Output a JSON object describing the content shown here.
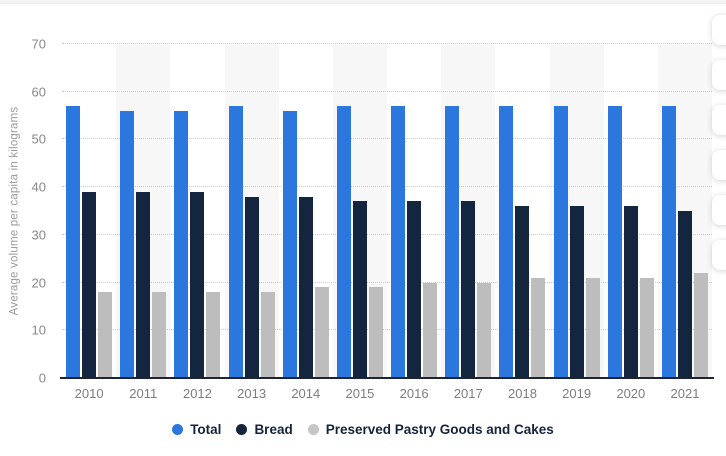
{
  "top_strip": {
    "color": "#f4f4f4"
  },
  "chart_data": {
    "type": "bar",
    "title": "",
    "xlabel": "",
    "ylabel": "Average volume per capita in kilograms",
    "categories": [
      "2010",
      "2011",
      "2012",
      "2013",
      "2014",
      "2015",
      "2016",
      "2017",
      "2018",
      "2019",
      "2020",
      "2021"
    ],
    "series": [
      {
        "name": "Total",
        "color": "#2b77dd",
        "values": [
          57,
          56,
          56,
          57,
          56,
          57,
          57,
          57,
          57,
          57,
          57,
          57
        ]
      },
      {
        "name": "Bread",
        "color": "#14263f",
        "values": [
          39,
          39,
          39,
          38,
          38,
          37,
          37,
          37,
          36,
          36,
          36,
          35
        ]
      },
      {
        "name": "Preserved Pastry Goods and Cakes",
        "color": "#bdbdbd",
        "values": [
          18,
          18,
          18,
          18,
          19,
          19,
          20,
          20,
          21,
          21,
          21,
          22
        ]
      }
    ],
    "ylim": [
      0,
      70
    ],
    "yticks": [
      0,
      10,
      20,
      30,
      40,
      50,
      60,
      70
    ],
    "grid": "horizontal-dotted",
    "column_highlight_indices": [
      1,
      3,
      5,
      7,
      9,
      11
    ],
    "legend_position": "bottom",
    "legend_marker_colors": [
      "#2b77dd",
      "#16253c",
      "#c6c6c6"
    ]
  },
  "colors": {
    "axis_text": "#898989",
    "x_axis_text": "#7d7d7d",
    "gridline": "#cccccc",
    "baseline": "#1d2433",
    "column_stripe": "#f7f7f7",
    "legend_text": "#15243c"
  },
  "side_toolbar": {
    "visible_buttons": 6
  }
}
